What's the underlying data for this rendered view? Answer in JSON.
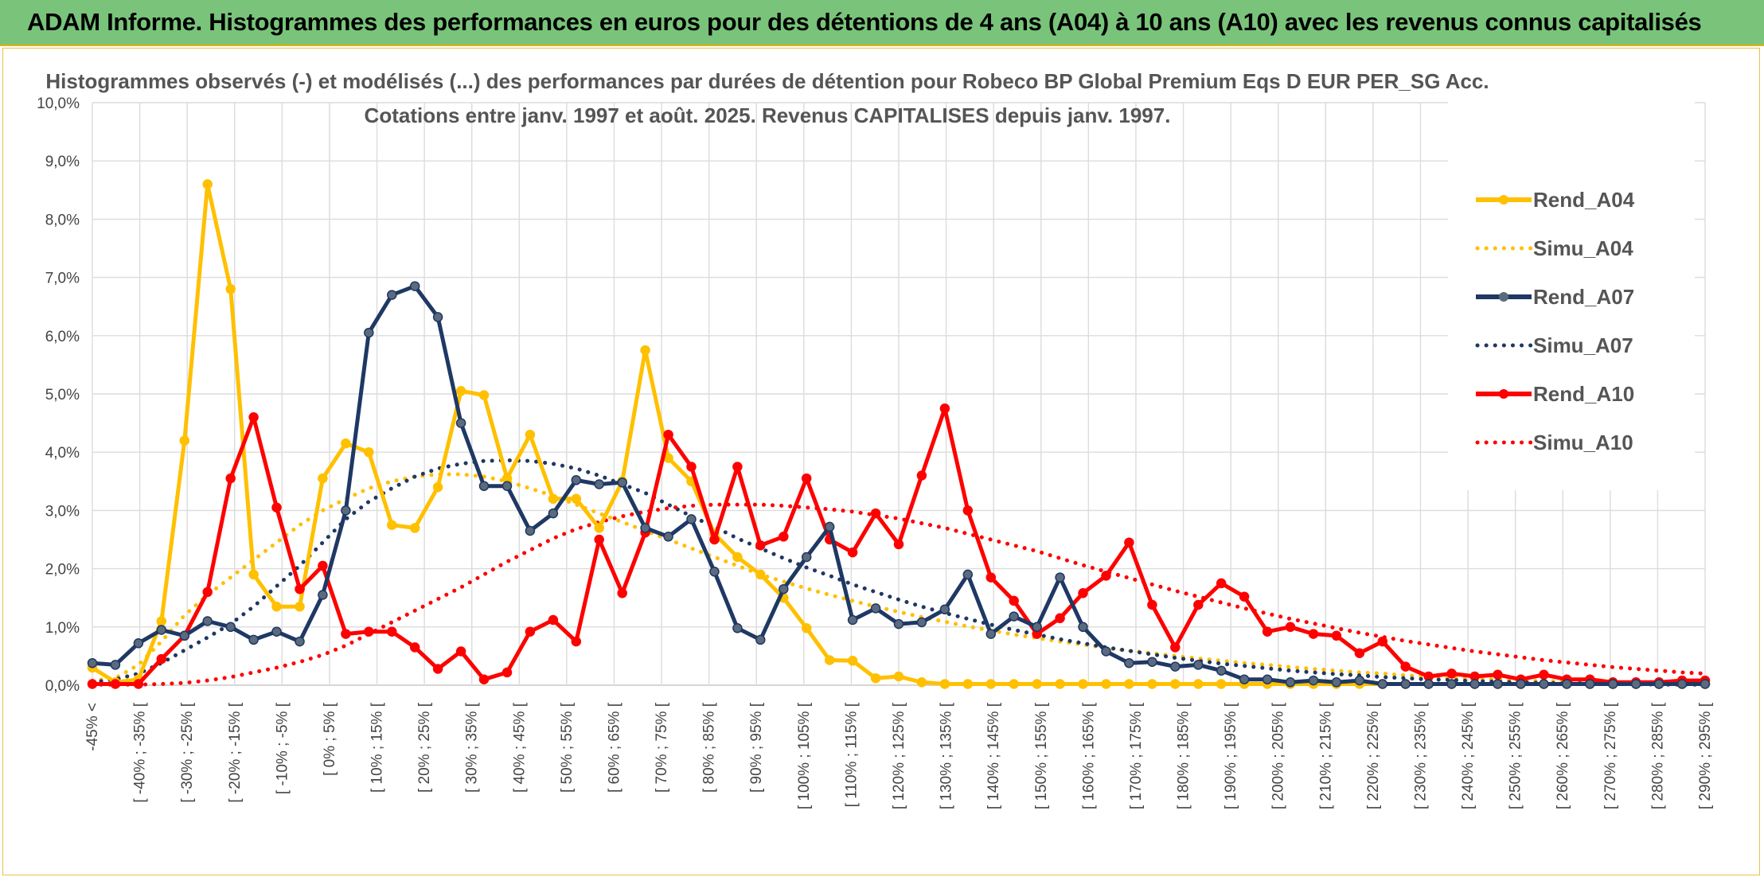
{
  "banner": {
    "title": "ADAM Informe. Histogrammes des performances en euros pour des détentions de 4 ans (A04) à 10 ans (A10) avec les revenus connus capitalisés"
  },
  "chart_data": {
    "type": "line",
    "title_lines": [
      "Histogrammes observés (-) et modélisés (...) des performances par durées de détention pour Robeco BP Global Premium Eqs D EUR PER_SG Acc.",
      "Cotations entre janv. 1997 et août. 2025. Revenus CAPITALISES depuis janv. 1997."
    ],
    "xlabel": "",
    "ylabel": "",
    "ylim": [
      0,
      10
    ],
    "y_ticks": [
      "0,0%",
      "1,0%",
      "2,0%",
      "3,0%",
      "4,0%",
      "5,0%",
      "6,0%",
      "7,0%",
      "8,0%",
      "9,0%",
      "10,0%"
    ],
    "grid": true,
    "legend_position": "right",
    "x_tick_labels": [
      "-45% <",
      "[ -40% ; -35% [",
      "[ -30% ; -25% [",
      "[ -20% ; -15% [",
      "[ -10% ; -5% [",
      "[ 0% ; 5% [",
      "[ 10% ; 15% [",
      "[ 20% ; 25% [",
      "[ 30% ; 35% [",
      "[ 40% ; 45% [",
      "[ 50% ; 55% [",
      "[ 60% ; 65% [",
      "[ 70% ; 75% [",
      "[ 80% ; 85% [",
      "[ 90% ; 95% [",
      "[ 100% ; 105% [",
      "[ 110% ; 115% [",
      "[ 120% ; 125% [",
      "[ 130% ; 135% [",
      "[ 140% ; 145% [",
      "[ 150% ; 155% [",
      "[ 160% ; 165% [",
      "[ 170% ; 175% [",
      "[ 180% ; 185% [",
      "[ 190% ; 195% [",
      "[ 200% ; 205% [",
      "[ 210% ; 215% [",
      "[ 220% ; 225% [",
      "[ 230% ; 235% [",
      "[ 240% ; 245% [",
      "[ 250% ; 255% [",
      "[ 260% ; 265% [",
      "[ 270% ; 275% [",
      "[ 280% ; 285% [",
      "[ 290% ; 295% ["
    ],
    "series": [
      {
        "name": "Rend_A04",
        "color": "#ffc000",
        "style": "solid-markers",
        "values": [
          0.3,
          0.05,
          0.1,
          1.1,
          4.2,
          8.6,
          6.8,
          1.9,
          1.35,
          1.35,
          3.55,
          4.15,
          4.0,
          2.75,
          2.7,
          3.4,
          5.05,
          4.98,
          3.55,
          4.3,
          3.2,
          3.2,
          2.7,
          3.5,
          5.75,
          3.9,
          3.5,
          2.6,
          2.2,
          1.9,
          1.5,
          0.98,
          0.43,
          0.42,
          0.12,
          0.15,
          0.05,
          0.02,
          0.02,
          0.02,
          0.02,
          0.02,
          0.02,
          0.02,
          0.02,
          0.02,
          0.02,
          0.02,
          0.02,
          0.02,
          0.02,
          0.02,
          0.02,
          0.02,
          0.02,
          0.02,
          0.02,
          0.02,
          0.02,
          0.02,
          0.02,
          0.02,
          0.02,
          0.02,
          0.02,
          0.02,
          0.02,
          0.02,
          0.02,
          0.02,
          0.02
        ]
      },
      {
        "name": "Simu_A04",
        "color": "#ffc000",
        "style": "dotted",
        "values": [
          0.08,
          0.12,
          0.35,
          0.75,
          1.2,
          1.55,
          1.85,
          2.15,
          2.45,
          2.75,
          3.0,
          3.2,
          3.38,
          3.5,
          3.58,
          3.62,
          3.62,
          3.58,
          3.5,
          3.38,
          3.25,
          3.1,
          2.95,
          2.8,
          2.65,
          2.5,
          2.35,
          2.2,
          2.05,
          1.9,
          1.78,
          1.66,
          1.55,
          1.45,
          1.35,
          1.26,
          1.17,
          1.09,
          1.01,
          0.94,
          0.87,
          0.81,
          0.75,
          0.7,
          0.64,
          0.59,
          0.55,
          0.5,
          0.46,
          0.42,
          0.38,
          0.35,
          0.31,
          0.28,
          0.25,
          0.22,
          0.2,
          0.17,
          0.15,
          0.13,
          0.11,
          0.1,
          0.08,
          0.07,
          0.06,
          0.05,
          0.04,
          0.04,
          0.03,
          0.03,
          0.02
        ]
      },
      {
        "name": "Rend_A07",
        "color": "#1f3864",
        "style": "solid-markers",
        "values": [
          0.38,
          0.35,
          0.72,
          0.95,
          0.85,
          1.1,
          1.0,
          0.78,
          0.92,
          0.75,
          1.55,
          3.0,
          6.05,
          6.7,
          6.85,
          6.32,
          4.5,
          3.42,
          3.42,
          2.65,
          2.95,
          3.52,
          3.45,
          3.48,
          2.7,
          2.55,
          2.85,
          1.95,
          0.98,
          0.78,
          1.65,
          2.2,
          2.72,
          1.12,
          1.32,
          1.05,
          1.08,
          1.3,
          1.9,
          0.88,
          1.18,
          1.0,
          1.85,
          1.0,
          0.58,
          0.38,
          0.4,
          0.32,
          0.35,
          0.25,
          0.1,
          0.1,
          0.05,
          0.08,
          0.05,
          0.08,
          0.02,
          0.02,
          0.02,
          0.02,
          0.02,
          0.02,
          0.02,
          0.02,
          0.02,
          0.02,
          0.02,
          0.02,
          0.02,
          0.02,
          0.02
        ]
      },
      {
        "name": "Simu_A07",
        "color": "#1f3864",
        "style": "dotted",
        "values": [
          0.05,
          0.1,
          0.2,
          0.38,
          0.6,
          0.82,
          1.05,
          1.35,
          1.7,
          2.05,
          2.45,
          2.85,
          3.15,
          3.38,
          3.58,
          3.72,
          3.8,
          3.85,
          3.86,
          3.85,
          3.8,
          3.72,
          3.6,
          3.45,
          3.3,
          3.1,
          2.9,
          2.72,
          2.52,
          2.35,
          2.18,
          2.02,
          1.88,
          1.73,
          1.6,
          1.47,
          1.35,
          1.24,
          1.14,
          1.04,
          0.95,
          0.87,
          0.79,
          0.72,
          0.65,
          0.59,
          0.53,
          0.47,
          0.42,
          0.37,
          0.33,
          0.29,
          0.25,
          0.22,
          0.19,
          0.17,
          0.14,
          0.12,
          0.1,
          0.09,
          0.07,
          0.06,
          0.05,
          0.04,
          0.03,
          0.03,
          0.02,
          0.02,
          0.01,
          0.01,
          0.01
        ]
      },
      {
        "name": "Rend_A10",
        "color": "#ff0000",
        "style": "solid-markers",
        "values": [
          0.02,
          0.02,
          0.02,
          0.45,
          0.85,
          1.6,
          3.55,
          4.6,
          3.05,
          1.65,
          2.05,
          0.88,
          0.92,
          0.92,
          0.65,
          0.28,
          0.58,
          0.1,
          0.22,
          0.92,
          1.12,
          0.75,
          2.5,
          1.58,
          2.62,
          4.3,
          3.75,
          2.5,
          3.75,
          2.4,
          2.55,
          3.55,
          2.5,
          2.28,
          2.95,
          2.42,
          3.6,
          4.75,
          3.0,
          1.85,
          1.45,
          0.88,
          1.15,
          1.58,
          1.88,
          2.45,
          1.38,
          0.65,
          1.38,
          1.75,
          1.52,
          0.92,
          1.0,
          0.88,
          0.85,
          0.55,
          0.75,
          0.32,
          0.15,
          0.2,
          0.15,
          0.18,
          0.1,
          0.18,
          0.1,
          0.1,
          0.05,
          0.05,
          0.05,
          0.08,
          0.08
        ]
      },
      {
        "name": "Simu_A10",
        "color": "#ff0000",
        "style": "dotted",
        "values": [
          0.01,
          0.01,
          0.01,
          0.02,
          0.04,
          0.08,
          0.14,
          0.22,
          0.3,
          0.4,
          0.52,
          0.68,
          0.88,
          1.08,
          1.28,
          1.48,
          1.68,
          1.9,
          2.12,
          2.32,
          2.52,
          2.68,
          2.8,
          2.9,
          2.98,
          3.04,
          3.08,
          3.1,
          3.1,
          3.1,
          3.08,
          3.05,
          3.02,
          2.98,
          2.92,
          2.86,
          2.78,
          2.7,
          2.6,
          2.5,
          2.4,
          2.3,
          2.18,
          2.06,
          1.95,
          1.84,
          1.73,
          1.62,
          1.52,
          1.42,
          1.32,
          1.23,
          1.14,
          1.06,
          0.98,
          0.9,
          0.83,
          0.76,
          0.7,
          0.64,
          0.58,
          0.53,
          0.48,
          0.43,
          0.39,
          0.35,
          0.31,
          0.28,
          0.25,
          0.22,
          0.2
        ]
      }
    ]
  }
}
